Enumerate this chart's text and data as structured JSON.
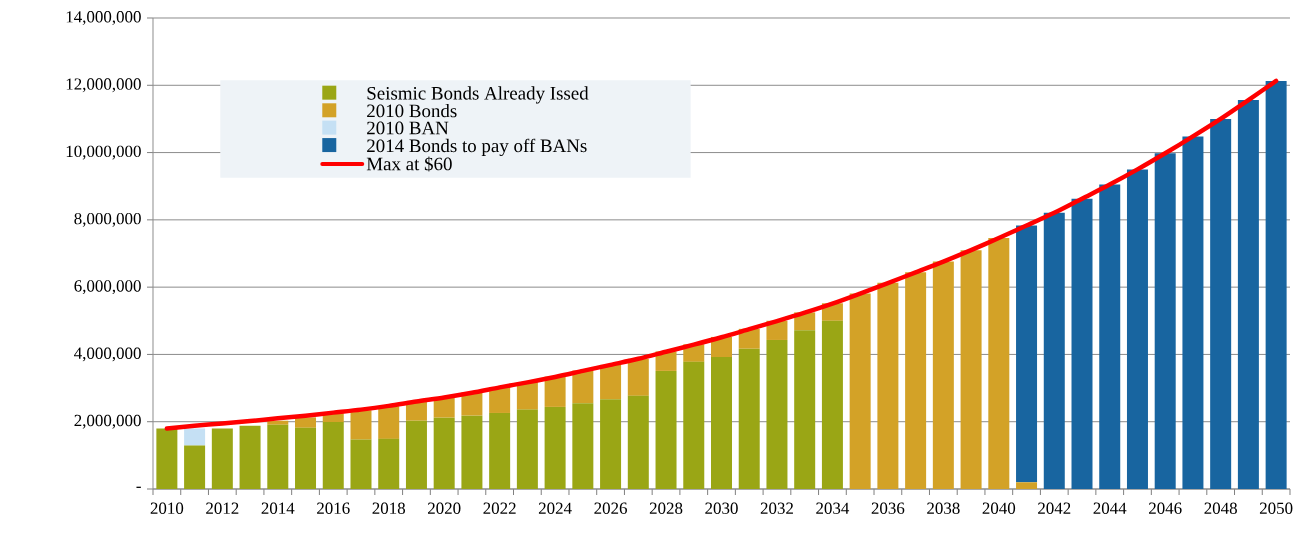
{
  "chart_data": {
    "type": "bar",
    "stacked": true,
    "categories": [
      "2010",
      null,
      "2012",
      null,
      "2014",
      null,
      "2016",
      null,
      "2018",
      null,
      "2020",
      null,
      "2022",
      null,
      "2024",
      null,
      "2026",
      null,
      "2028",
      null,
      "2030",
      null,
      "2032",
      null,
      "2034",
      null,
      "2036",
      null,
      "2038",
      null,
      "2040",
      null,
      "2042",
      null,
      "2044",
      null,
      "2046",
      null,
      "2048",
      null,
      "2050"
    ],
    "series": [
      {
        "name": "Seismic Bonds Already Issed",
        "color": "#9aa615",
        "values": [
          1800000,
          1290000,
          1800000,
          1880000,
          1910000,
          1820000,
          1990000,
          1470000,
          1490000,
          2030000,
          2120000,
          2180000,
          2260000,
          2360000,
          2440000,
          2550000,
          2670000,
          2770000,
          3510000,
          3780000,
          3920000,
          4170000,
          4430000,
          4720000,
          5000000,
          null,
          null,
          null,
          null,
          null,
          null,
          null,
          null,
          null,
          null,
          null,
          null,
          null,
          null,
          null,
          null
        ]
      },
      {
        "name": "2010 Bonds",
        "color": "#d3a227",
        "values": [
          null,
          null,
          null,
          null,
          120000,
          310000,
          260000,
          870000,
          970000,
          580000,
          600000,
          690000,
          770000,
          820000,
          900000,
          970000,
          1020000,
          1100000,
          580000,
          520000,
          600000,
          590000,
          570000,
          530000,
          520000,
          5810000,
          6130000,
          6440000,
          6760000,
          7100000,
          7460000,
          200000,
          null,
          null,
          null,
          null,
          null,
          null,
          null,
          null,
          null
        ]
      },
      {
        "name": "2010 BAN",
        "color": "#c5e0f4",
        "values": [
          null,
          510000,
          null,
          null,
          null,
          null,
          null,
          null,
          null,
          null,
          null,
          null,
          null,
          null,
          null,
          null,
          null,
          null,
          null,
          null,
          null,
          null,
          null,
          null,
          null,
          null,
          null,
          null,
          null,
          null,
          null,
          null,
          null,
          null,
          null,
          null,
          null,
          null,
          null,
          null,
          null
        ]
      },
      {
        "name": "2014 Bonds to pay off BANs",
        "color": "#1865a0",
        "values": [
          null,
          null,
          null,
          null,
          null,
          null,
          null,
          null,
          null,
          null,
          null,
          null,
          null,
          null,
          null,
          null,
          null,
          null,
          null,
          null,
          null,
          null,
          null,
          null,
          null,
          null,
          null,
          null,
          null,
          null,
          null,
          7630000,
          8210000,
          8630000,
          9050000,
          9500000,
          9980000,
          10480000,
          11000000,
          11560000,
          12130000
        ]
      },
      {
        "name": "Max at $60",
        "type": "line",
        "color": "#ff0000",
        "values": [
          1800000,
          1880000,
          1950000,
          2020000,
          2100000,
          2180000,
          2270000,
          2360000,
          2470000,
          2600000,
          2720000,
          2860000,
          3020000,
          3170000,
          3330000,
          3510000,
          3690000,
          3870000,
          4080000,
          4290000,
          4510000,
          4750000,
          4990000,
          5240000,
          5510000,
          5810000,
          6120000,
          6440000,
          6760000,
          7100000,
          7460000,
          7830000,
          8210000,
          8630000,
          9050000,
          9500000,
          9980000,
          10480000,
          11000000,
          11560000,
          12130000
        ]
      }
    ],
    "ylim": [
      0,
      14000000
    ],
    "yticks": [
      {
        "value": 0,
        "label": "-"
      },
      {
        "value": 2000000,
        "label": "2,000,000"
      },
      {
        "value": 4000000,
        "label": "4,000,000"
      },
      {
        "value": 6000000,
        "label": "6,000,000"
      },
      {
        "value": 8000000,
        "label": "8,000,000"
      },
      {
        "value": 10000000,
        "label": "10,000,000"
      },
      {
        "value": 12000000,
        "label": "12,000,000"
      },
      {
        "value": 14000000,
        "label": "14,000,000"
      }
    ],
    "grid": "y",
    "legend": "top left"
  }
}
